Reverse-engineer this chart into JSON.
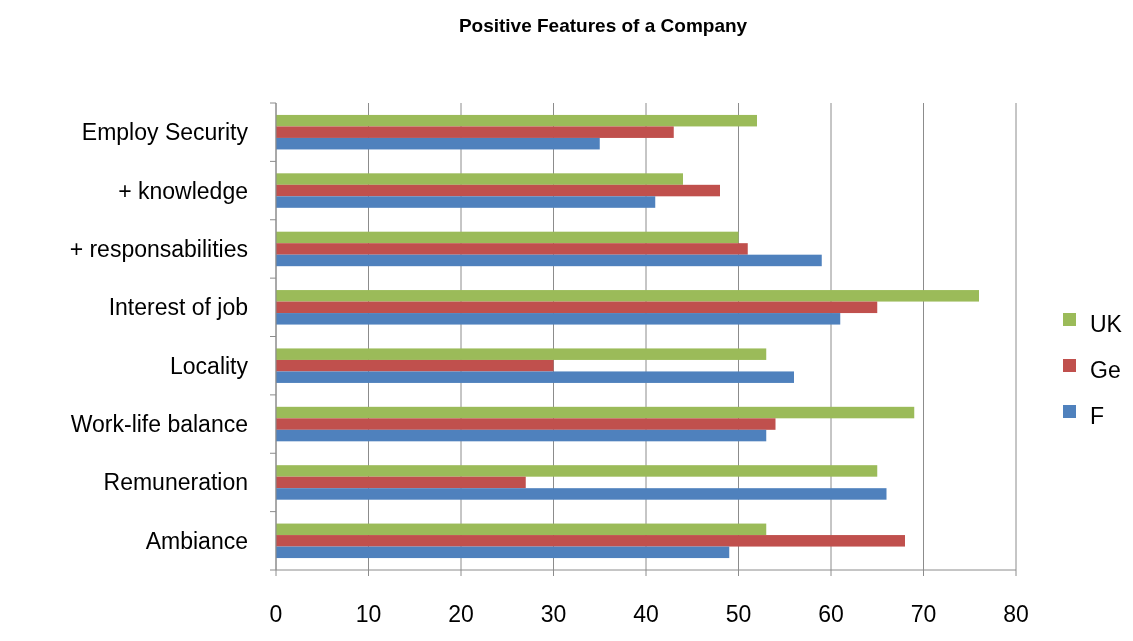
{
  "chart_data": {
    "type": "bar",
    "orientation": "horizontal",
    "title": "Positive Features of a Company",
    "categories": [
      "Employ Security",
      "+ knowledge",
      "+ responsabilities",
      "Interest of job",
      "Locality",
      "Work-life balance",
      "Remuneration",
      "Ambiance"
    ],
    "series": [
      {
        "name": "UK",
        "color": "#9bbb59",
        "values": [
          52,
          44,
          50,
          76,
          53,
          69,
          65,
          53
        ]
      },
      {
        "name": "Ge",
        "color": "#c0504d",
        "values": [
          43,
          48,
          51,
          65,
          30,
          54,
          27,
          68
        ]
      },
      {
        "name": "F",
        "color": "#4f81bd",
        "values": [
          35,
          41,
          59,
          61,
          56,
          53,
          66,
          49
        ]
      }
    ],
    "xlim": [
      0,
      80
    ],
    "xticks": [
      0,
      10,
      20,
      30,
      40,
      50,
      60,
      70,
      80
    ],
    "grid": "x",
    "legend": "right"
  }
}
